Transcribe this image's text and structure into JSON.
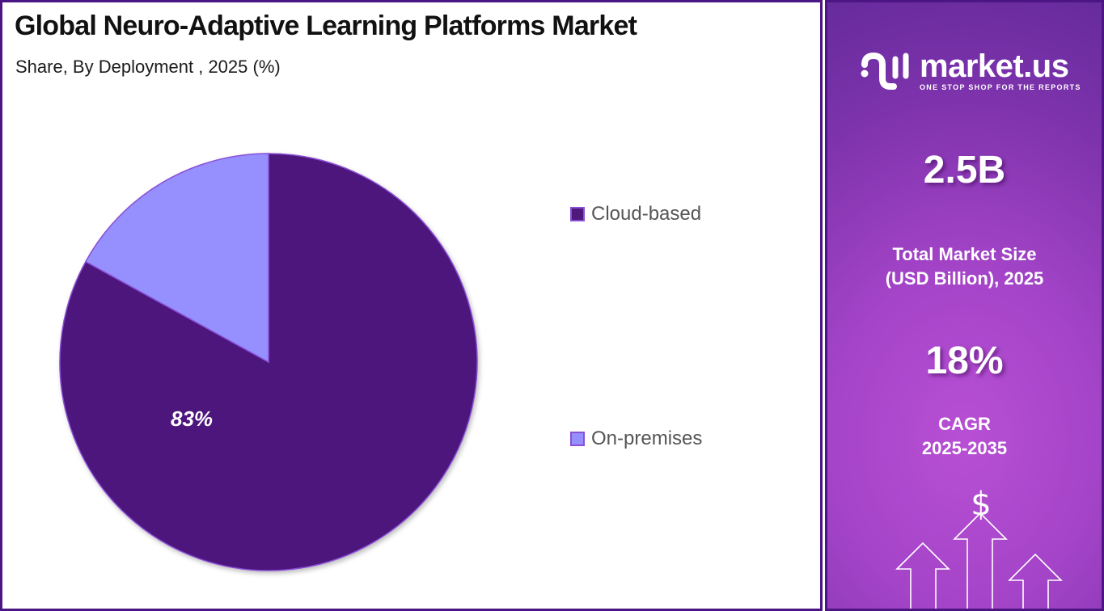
{
  "header": {
    "title": "Global Neuro-Adaptive Learning Platforms Market",
    "subtitle": "Share, By Deployment , 2025 (%)"
  },
  "chart_data": {
    "type": "pie",
    "title": "Global Neuro-Adaptive Learning Platforms Market",
    "subtitle": "Share, By Deployment , 2025 (%)",
    "categories": [
      "Cloud-based",
      "On-premises"
    ],
    "values": [
      83,
      17
    ],
    "unit": "%",
    "data_labels": [
      "83%",
      ""
    ],
    "colors": [
      "#4e187c",
      "#9590fd"
    ],
    "slice_border_color": "#8a4fd6",
    "start_angle": "12 o'clock",
    "direction": "clockwise",
    "legend_position": "right"
  },
  "pie": {
    "label_cloud": "83%"
  },
  "legend": {
    "items": [
      {
        "label": "Cloud-based",
        "color": "#4e187c"
      },
      {
        "label": "On-premises",
        "color": "#9590fd"
      }
    ]
  },
  "brand": {
    "name": "market.us",
    "tagline": "ONE STOP SHOP FOR THE REPORTS"
  },
  "stats": {
    "market_size_value": "2.5B",
    "market_size_label_line1": "Total Market Size",
    "market_size_label_line2": "(USD Billion), 2025",
    "cagr_value": "18%",
    "cagr_label_line1": "CAGR",
    "cagr_label_line2": "2025-2035"
  },
  "icons": {
    "growth_graphic": "dollar-with-up-arrows-icon",
    "currency_symbol": "$"
  },
  "colors": {
    "border": "#4b1683",
    "cloud_based": "#4e187c",
    "on_premises": "#9590fd",
    "panel_gradient_top": "#632a9b",
    "panel_gradient_mid": "#b84fd4"
  }
}
